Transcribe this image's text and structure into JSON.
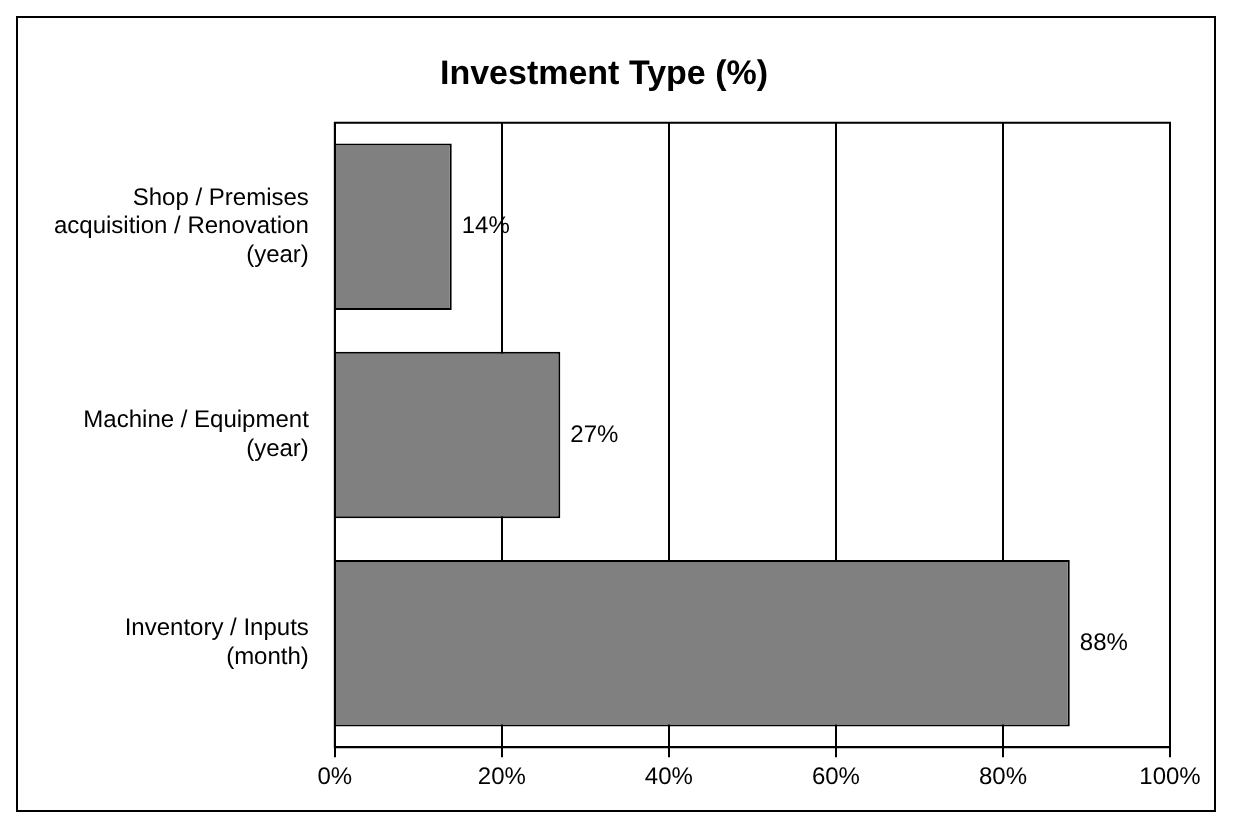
{
  "chart_data": {
    "type": "bar",
    "orientation": "horizontal",
    "title": "Investment Type (%)",
    "categories": [
      "Shop / Premises acquisition / Renovation (year)",
      "Machine / Equipment (year)",
      "Inventory / Inputs (month)"
    ],
    "values": [
      14,
      27,
      88
    ],
    "color": "#808080",
    "value_labels": [
      "14%",
      "27%",
      "88%"
    ],
    "xlim": [
      0,
      100
    ],
    "xticks": [
      {
        "value": 0,
        "label": "0%"
      },
      {
        "value": 20,
        "label": "20%"
      },
      {
        "value": 40,
        "label": "40%"
      },
      {
        "value": 60,
        "label": "60%"
      },
      {
        "value": 80,
        "label": "80%"
      },
      {
        "value": 100,
        "label": "100%"
      }
    ],
    "grid": "x",
    "legend": false
  }
}
